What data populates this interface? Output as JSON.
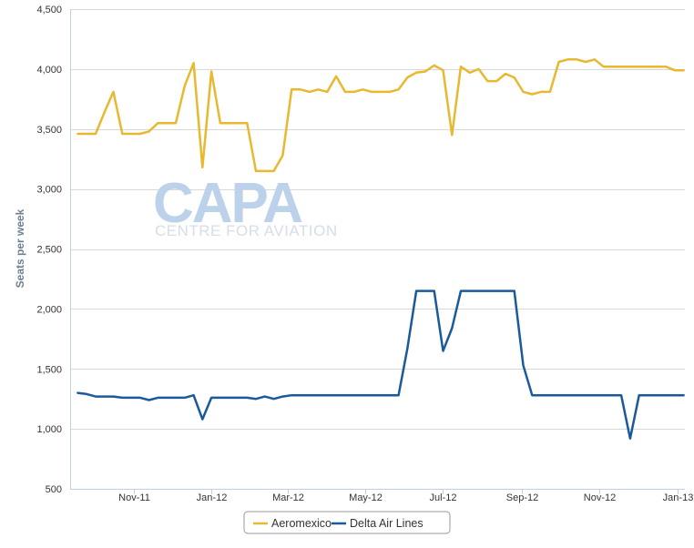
{
  "watermark": {
    "logo": "CAPA",
    "subtitle": "CENTRE FOR AVIATION"
  },
  "chart_data": {
    "type": "line",
    "title": "",
    "xlabel": "",
    "ylabel": "Seats per week",
    "ylim": [
      500,
      4500
    ],
    "yticks": [
      500,
      1000,
      1500,
      2000,
      2500,
      3000,
      3500,
      4000,
      4500
    ],
    "ytick_labels": [
      "500",
      "1,000",
      "1,500",
      "2,000",
      "2,500",
      "3,000",
      "3,500",
      "4,000",
      "4,500"
    ],
    "xlim": [
      "2011-09-12",
      "2013-01-07"
    ],
    "xticks": [
      {
        "label": "Nov-11",
        "date": "2011-11-01"
      },
      {
        "label": "Jan-12",
        "date": "2012-01-01"
      },
      {
        "label": "Mar-12",
        "date": "2012-03-01"
      },
      {
        "label": "May-12",
        "date": "2012-05-01"
      },
      {
        "label": "Jul-12",
        "date": "2012-07-01"
      },
      {
        "label": "Sep-12",
        "date": "2012-09-01"
      },
      {
        "label": "Nov-12",
        "date": "2012-11-01"
      },
      {
        "label": "Jan-13",
        "date": "2013-01-01"
      }
    ],
    "grid": true,
    "legend": "bottom",
    "x": [
      "2011-09-18",
      "2011-09-25",
      "2011-10-02",
      "2011-10-09",
      "2011-10-16",
      "2011-10-23",
      "2011-10-30",
      "2011-11-06",
      "2011-11-13",
      "2011-11-20",
      "2011-11-27",
      "2011-12-04",
      "2011-12-11",
      "2011-12-18",
      "2011-12-25",
      "2012-01-01",
      "2012-01-08",
      "2012-01-15",
      "2012-01-22",
      "2012-01-29",
      "2012-02-05",
      "2012-02-12",
      "2012-02-19",
      "2012-02-26",
      "2012-03-04",
      "2012-03-11",
      "2012-03-18",
      "2012-03-25",
      "2012-04-01",
      "2012-04-08",
      "2012-04-15",
      "2012-04-22",
      "2012-04-29",
      "2012-05-06",
      "2012-05-13",
      "2012-05-20",
      "2012-05-27",
      "2012-06-03",
      "2012-06-10",
      "2012-06-17",
      "2012-06-24",
      "2012-07-01",
      "2012-07-08",
      "2012-07-15",
      "2012-07-22",
      "2012-07-29",
      "2012-08-05",
      "2012-08-12",
      "2012-08-19",
      "2012-08-26",
      "2012-09-02",
      "2012-09-09",
      "2012-09-16",
      "2012-09-23",
      "2012-09-30",
      "2012-10-07",
      "2012-10-14",
      "2012-10-21",
      "2012-10-28",
      "2012-11-04",
      "2012-11-11",
      "2012-11-18",
      "2012-11-25",
      "2012-12-02",
      "2012-12-09",
      "2012-12-16",
      "2012-12-23",
      "2012-12-30",
      "2013-01-06"
    ],
    "series": [
      {
        "name": "Aeromexico",
        "color": "#e8b830",
        "values": [
          3460,
          3460,
          3460,
          3640,
          3810,
          3460,
          3460,
          3460,
          3480,
          3550,
          3550,
          3550,
          3860,
          4050,
          3180,
          3980,
          3550,
          3550,
          3550,
          3550,
          3150,
          3150,
          3150,
          3280,
          3830,
          3830,
          3810,
          3830,
          3810,
          3940,
          3810,
          3810,
          3830,
          3810,
          3810,
          3810,
          3830,
          3930,
          3970,
          3980,
          4030,
          3990,
          3450,
          4020,
          3970,
          4000,
          3900,
          3900,
          3960,
          3930,
          3810,
          3790,
          3810,
          3810,
          4060,
          4080,
          4080,
          4060,
          4080,
          4020,
          4020,
          4020,
          4020,
          4020,
          4020,
          4020,
          4020,
          3990,
          3990
        ]
      },
      {
        "name": "Delta Air Lines",
        "color": "#1a5a9a",
        "values": [
          1300,
          1290,
          1270,
          1270,
          1270,
          1260,
          1260,
          1260,
          1240,
          1260,
          1260,
          1260,
          1260,
          1280,
          1080,
          1260,
          1260,
          1260,
          1260,
          1260,
          1250,
          1270,
          1250,
          1270,
          1280,
          1280,
          1280,
          1280,
          1280,
          1280,
          1280,
          1280,
          1280,
          1280,
          1280,
          1280,
          1280,
          1670,
          2150,
          2150,
          2150,
          1650,
          1840,
          2150,
          2150,
          2150,
          2150,
          2150,
          2150,
          2150,
          1530,
          1280,
          1280,
          1280,
          1280,
          1280,
          1280,
          1280,
          1280,
          1280,
          1280,
          1280,
          920,
          1280,
          1280,
          1280,
          1280,
          1280,
          1280
        ]
      }
    ]
  }
}
